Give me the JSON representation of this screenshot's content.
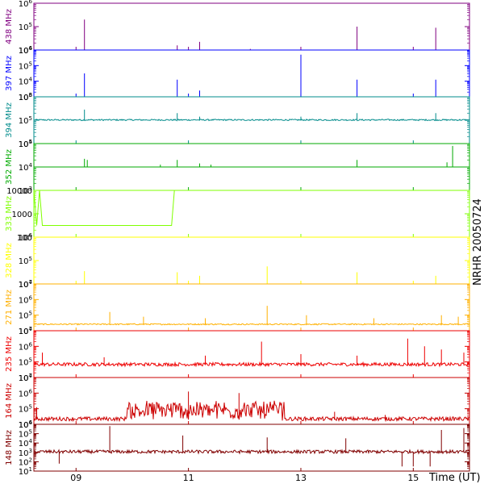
{
  "figure": {
    "side_label": "NRHR 20050724",
    "x_axis_label": "Time (UT)",
    "x_ticks": [
      {
        "value": 9,
        "label": "09"
      },
      {
        "value": 11,
        "label": "11"
      },
      {
        "value": 13,
        "label": "13"
      },
      {
        "value": 15,
        "label": "15"
      }
    ],
    "x_range": [
      8.25,
      16.0
    ],
    "background": "#ffffff",
    "frame_color": "#000000"
  },
  "chart_data": [
    {
      "type": "line",
      "name": "438 MHz",
      "ylabel": "438 MHz",
      "color": "#800080",
      "scale": "log",
      "ylim_exp": [
        4,
        6
      ],
      "tick_labels": [
        "10^4",
        "10^5",
        "10^6"
      ],
      "baseline_exp": 4.0,
      "noise": 0.0,
      "spikes": [
        [
          9.15,
          5.3
        ],
        [
          10.8,
          4.2
        ],
        [
          11.2,
          4.35
        ],
        [
          12.1,
          4.05
        ],
        [
          14.0,
          5.0
        ],
        [
          15.4,
          4.95
        ]
      ]
    },
    {
      "type": "line",
      "name": "397 MHz",
      "ylabel": "397 MHz",
      "color": "#0000ff",
      "scale": "log",
      "ylim_exp": [
        3,
        6
      ],
      "tick_labels": [
        "10^3",
        "10^4",
        "10^5",
        "10^6"
      ],
      "baseline_exp": 3.0,
      "noise": 0.0,
      "spikes": [
        [
          9.15,
          4.5
        ],
        [
          10.8,
          4.1
        ],
        [
          11.2,
          3.4
        ],
        [
          13.0,
          5.7
        ],
        [
          14.0,
          4.1
        ],
        [
          15.4,
          4.1
        ]
      ]
    },
    {
      "type": "line",
      "name": "394 MHz",
      "ylabel": "394 MHz",
      "color": "#008b8b",
      "scale": "log",
      "ylim_exp": [
        4,
        6
      ],
      "tick_labels": [
        "10^4",
        "10^5",
        "10^6"
      ],
      "baseline_exp": 5.0,
      "noise": 0.06,
      "spikes": [
        [
          9.15,
          5.45
        ],
        [
          10.8,
          5.3
        ],
        [
          11.2,
          5.15
        ],
        [
          13.0,
          5.15
        ],
        [
          14.0,
          5.3
        ],
        [
          15.4,
          5.3
        ]
      ]
    },
    {
      "type": "line",
      "name": "352 MHz",
      "ylabel": "352 MHz",
      "color": "#00aa00",
      "scale": "log",
      "ylim_exp": [
        3,
        5
      ],
      "tick_labels": [
        "10^3",
        "10^4",
        "10^5"
      ],
      "baseline_exp": 4.0,
      "noise": 0.0,
      "spikes": [
        [
          9.15,
          4.35
        ],
        [
          9.2,
          4.3
        ],
        [
          10.5,
          4.1
        ],
        [
          10.8,
          4.3
        ],
        [
          11.2,
          4.15
        ],
        [
          11.4,
          4.1
        ],
        [
          14.0,
          4.3
        ],
        [
          15.6,
          4.2
        ],
        [
          15.7,
          4.9
        ]
      ]
    },
    {
      "type": "line",
      "name": "333 MHz",
      "ylabel": "333 MHz",
      "color": "#7fff00",
      "scale": "log",
      "ylim_exp": [
        2,
        4
      ],
      "tick_labels": [
        "100",
        "1000",
        "10000"
      ],
      "step": [
        [
          8.25,
          4.0
        ],
        [
          8.3,
          2.5
        ],
        [
          8.35,
          4.0
        ],
        [
          8.4,
          2.5
        ],
        [
          10.7,
          2.5
        ],
        [
          10.75,
          4.0
        ],
        [
          16.0,
          4.0
        ]
      ]
    },
    {
      "type": "line",
      "name": "328 MHz",
      "ylabel": "328 MHz",
      "color": "#ffff00",
      "scale": "log",
      "ylim_exp": [
        4,
        6
      ],
      "tick_labels": [
        "10^4",
        "10^5",
        "10^6"
      ],
      "baseline_exp": 4.0,
      "noise": 0.0,
      "spikes": [
        [
          9.15,
          4.55
        ],
        [
          10.8,
          4.5
        ],
        [
          11.2,
          4.35
        ],
        [
          12.4,
          4.75
        ],
        [
          14.0,
          4.5
        ],
        [
          15.4,
          4.35
        ]
      ]
    },
    {
      "type": "line",
      "name": "271 MHz",
      "ylabel": "271 MHz",
      "color": "#ffb000",
      "scale": "log",
      "ylim_exp": [
        4,
        7
      ],
      "tick_labels": [
        "10^4",
        "10^5",
        "10^6",
        "10^7"
      ],
      "baseline_exp": 4.4,
      "noise": 0.08,
      "spikes": [
        [
          9.6,
          5.2
        ],
        [
          10.2,
          4.9
        ],
        [
          11.3,
          4.8
        ],
        [
          12.4,
          5.6
        ],
        [
          13.1,
          5.0
        ],
        [
          14.3,
          4.8
        ],
        [
          15.5,
          5.0
        ],
        [
          15.8,
          4.9
        ]
      ]
    },
    {
      "type": "line",
      "name": "235 MHz",
      "ylabel": "235 MHz",
      "color": "#ee0000",
      "scale": "log",
      "ylim_exp": [
        4,
        7
      ],
      "tick_labels": [
        "10^4",
        "10^5",
        "10^6",
        "10^7"
      ],
      "baseline_exp": 4.8,
      "noise": 0.22,
      "spikes": [
        [
          8.4,
          5.6
        ],
        [
          9.5,
          5.3
        ],
        [
          11.3,
          5.4
        ],
        [
          12.3,
          6.3
        ],
        [
          13.0,
          5.5
        ],
        [
          14.0,
          5.4
        ],
        [
          14.9,
          6.5
        ],
        [
          15.2,
          6.0
        ],
        [
          15.5,
          5.8
        ],
        [
          15.9,
          5.6
        ]
      ]
    },
    {
      "type": "line",
      "name": "164 MHz",
      "ylabel": "164 MHz",
      "color": "#cc0000",
      "scale": "log",
      "ylim_exp": [
        4,
        7
      ],
      "tick_labels": [
        "10^4",
        "10^5",
        "10^6",
        "10^7"
      ],
      "baseline_exp": 4.3,
      "noise": 0.25,
      "burst": {
        "start": 9.9,
        "end": 12.7,
        "amp": 1.1
      },
      "spikes": [
        [
          8.3,
          5.1
        ],
        [
          11.0,
          6.1
        ],
        [
          11.9,
          6.0
        ],
        [
          13.6,
          4.8
        ],
        [
          14.5,
          4.6
        ]
      ]
    },
    {
      "type": "line",
      "name": "148 MHz",
      "ylabel": "148 MHz",
      "color": "#800000",
      "scale": "log",
      "ylim_exp": [
        1,
        6
      ],
      "tick_labels": [
        "10^1",
        "10^2",
        "10^3",
        "10^4",
        "10^5",
        "10^6"
      ],
      "baseline_exp": 3.0,
      "noise": 0.35,
      "spikes": [
        [
          9.6,
          5.8
        ],
        [
          10.9,
          4.8
        ],
        [
          12.4,
          4.6
        ],
        [
          13.8,
          4.5
        ],
        [
          15.5,
          5.4
        ],
        [
          15.9,
          5.6
        ]
      ],
      "dips": [
        [
          8.7,
          1.8
        ],
        [
          14.8,
          1.5
        ],
        [
          15.0,
          1.5
        ],
        [
          15.3,
          1.5
        ]
      ]
    }
  ]
}
